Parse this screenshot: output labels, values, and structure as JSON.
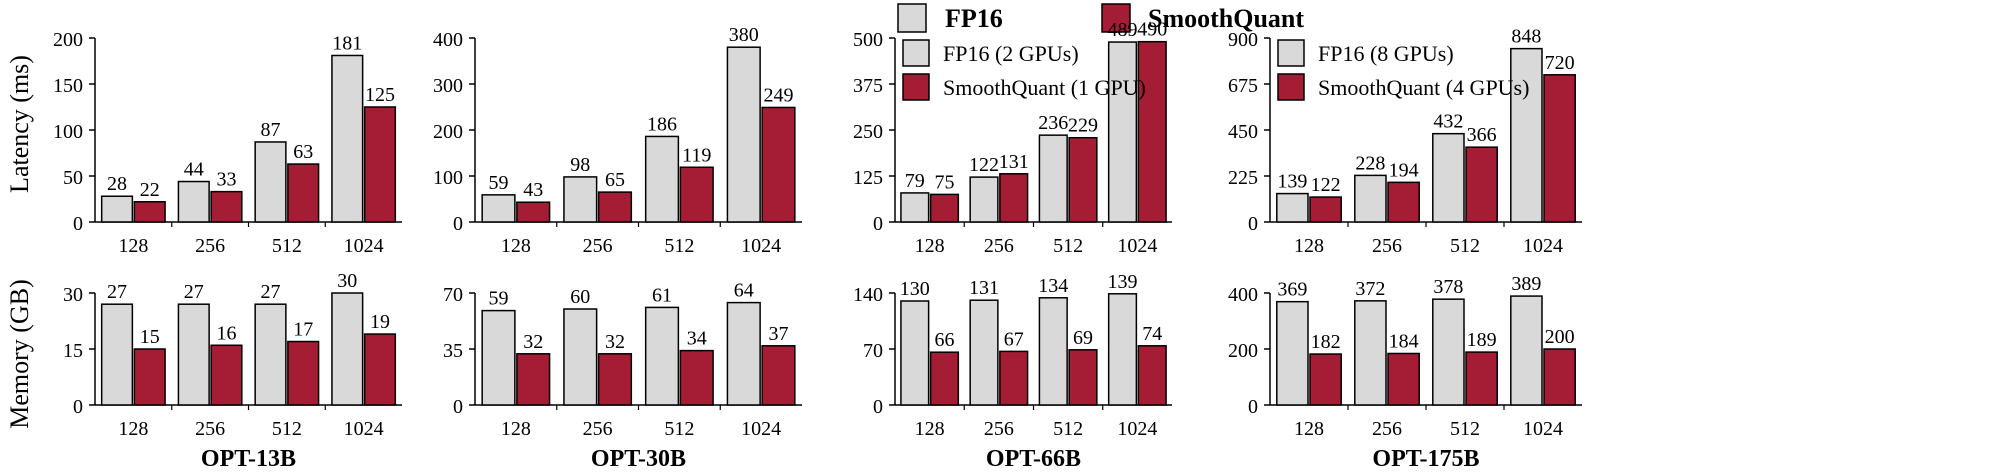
{
  "colors": {
    "fp16": "#d9d9d9",
    "sq": "#a51d35",
    "edge": "#000000"
  },
  "legend_top": {
    "fp16": "FP16",
    "sq": "SmoothQuant"
  },
  "ylabels": {
    "latency": "Latency (ms)",
    "memory": "Memory (GB)"
  },
  "chart_data": [
    {
      "type": "bar",
      "title": "OPT-13B",
      "ylabel": "Latency (ms)",
      "categories": [
        "128",
        "256",
        "512",
        "1024"
      ],
      "series": [
        {
          "values": [
            28,
            44,
            87,
            181
          ]
        },
        {
          "values": [
            22,
            33,
            63,
            125
          ]
        }
      ],
      "ylim": [
        0,
        200
      ],
      "yticks": [
        0,
        50,
        100,
        150,
        200
      ],
      "legend": null
    },
    {
      "type": "bar",
      "title": "OPT-30B",
      "categories": [
        "128",
        "256",
        "512",
        "1024"
      ],
      "series": [
        {
          "values": [
            59,
            98,
            186,
            380
          ]
        },
        {
          "values": [
            43,
            65,
            119,
            249
          ]
        }
      ],
      "ylim": [
        0,
        400
      ],
      "yticks": [
        0,
        100,
        200,
        300,
        400
      ],
      "legend": null
    },
    {
      "type": "bar",
      "title": "OPT-66B",
      "categories": [
        "128",
        "256",
        "512",
        "1024"
      ],
      "series": [
        {
          "name": "FP16 (2 GPUs)",
          "values": [
            79,
            122,
            236,
            489
          ]
        },
        {
          "name": "SmoothQuant (1 GPU)",
          "values": [
            75,
            131,
            229,
            490
          ]
        }
      ],
      "ylim": [
        0,
        500
      ],
      "yticks": [
        0,
        125,
        250,
        375,
        500
      ],
      "legend": "top-left"
    },
    {
      "type": "bar",
      "title": "OPT-175B",
      "categories": [
        "128",
        "256",
        "512",
        "1024"
      ],
      "series": [
        {
          "name": "FP16 (8 GPUs)",
          "values": [
            139,
            228,
            432,
            848
          ]
        },
        {
          "name": "SmoothQuant (4 GPUs)",
          "values": [
            122,
            194,
            366,
            720
          ]
        }
      ],
      "ylim": [
        0,
        900
      ],
      "yticks": [
        0,
        225,
        450,
        675,
        900
      ],
      "legend": "top-left"
    },
    {
      "type": "bar",
      "title": "OPT-13B",
      "ylabel": "Memory (GB)",
      "categories": [
        "128",
        "256",
        "512",
        "1024"
      ],
      "series": [
        {
          "values": [
            27,
            27,
            27,
            30
          ]
        },
        {
          "values": [
            15,
            16,
            17,
            19
          ]
        }
      ],
      "ylim": [
        0,
        30
      ],
      "yticks": [
        0,
        15,
        30
      ],
      "legend": null
    },
    {
      "type": "bar",
      "title": "OPT-30B",
      "categories": [
        "128",
        "256",
        "512",
        "1024"
      ],
      "series": [
        {
          "values": [
            59,
            60,
            61,
            64
          ]
        },
        {
          "values": [
            32,
            32,
            34,
            37
          ]
        }
      ],
      "ylim": [
        0,
        70
      ],
      "yticks": [
        0,
        35,
        70
      ],
      "legend": null
    },
    {
      "type": "bar",
      "title": "OPT-66B",
      "categories": [
        "128",
        "256",
        "512",
        "1024"
      ],
      "series": [
        {
          "values": [
            130,
            131,
            134,
            139
          ]
        },
        {
          "values": [
            66,
            67,
            69,
            74
          ]
        }
      ],
      "ylim": [
        0,
        140
      ],
      "yticks": [
        0,
        70,
        140
      ],
      "legend": null
    },
    {
      "type": "bar",
      "title": "OPT-175B",
      "categories": [
        "128",
        "256",
        "512",
        "1024"
      ],
      "series": [
        {
          "values": [
            369,
            372,
            378,
            389
          ]
        },
        {
          "values": [
            182,
            184,
            189,
            200
          ]
        }
      ],
      "ylim": [
        0,
        400
      ],
      "yticks": [
        0,
        200,
        400
      ],
      "legend": null
    }
  ]
}
